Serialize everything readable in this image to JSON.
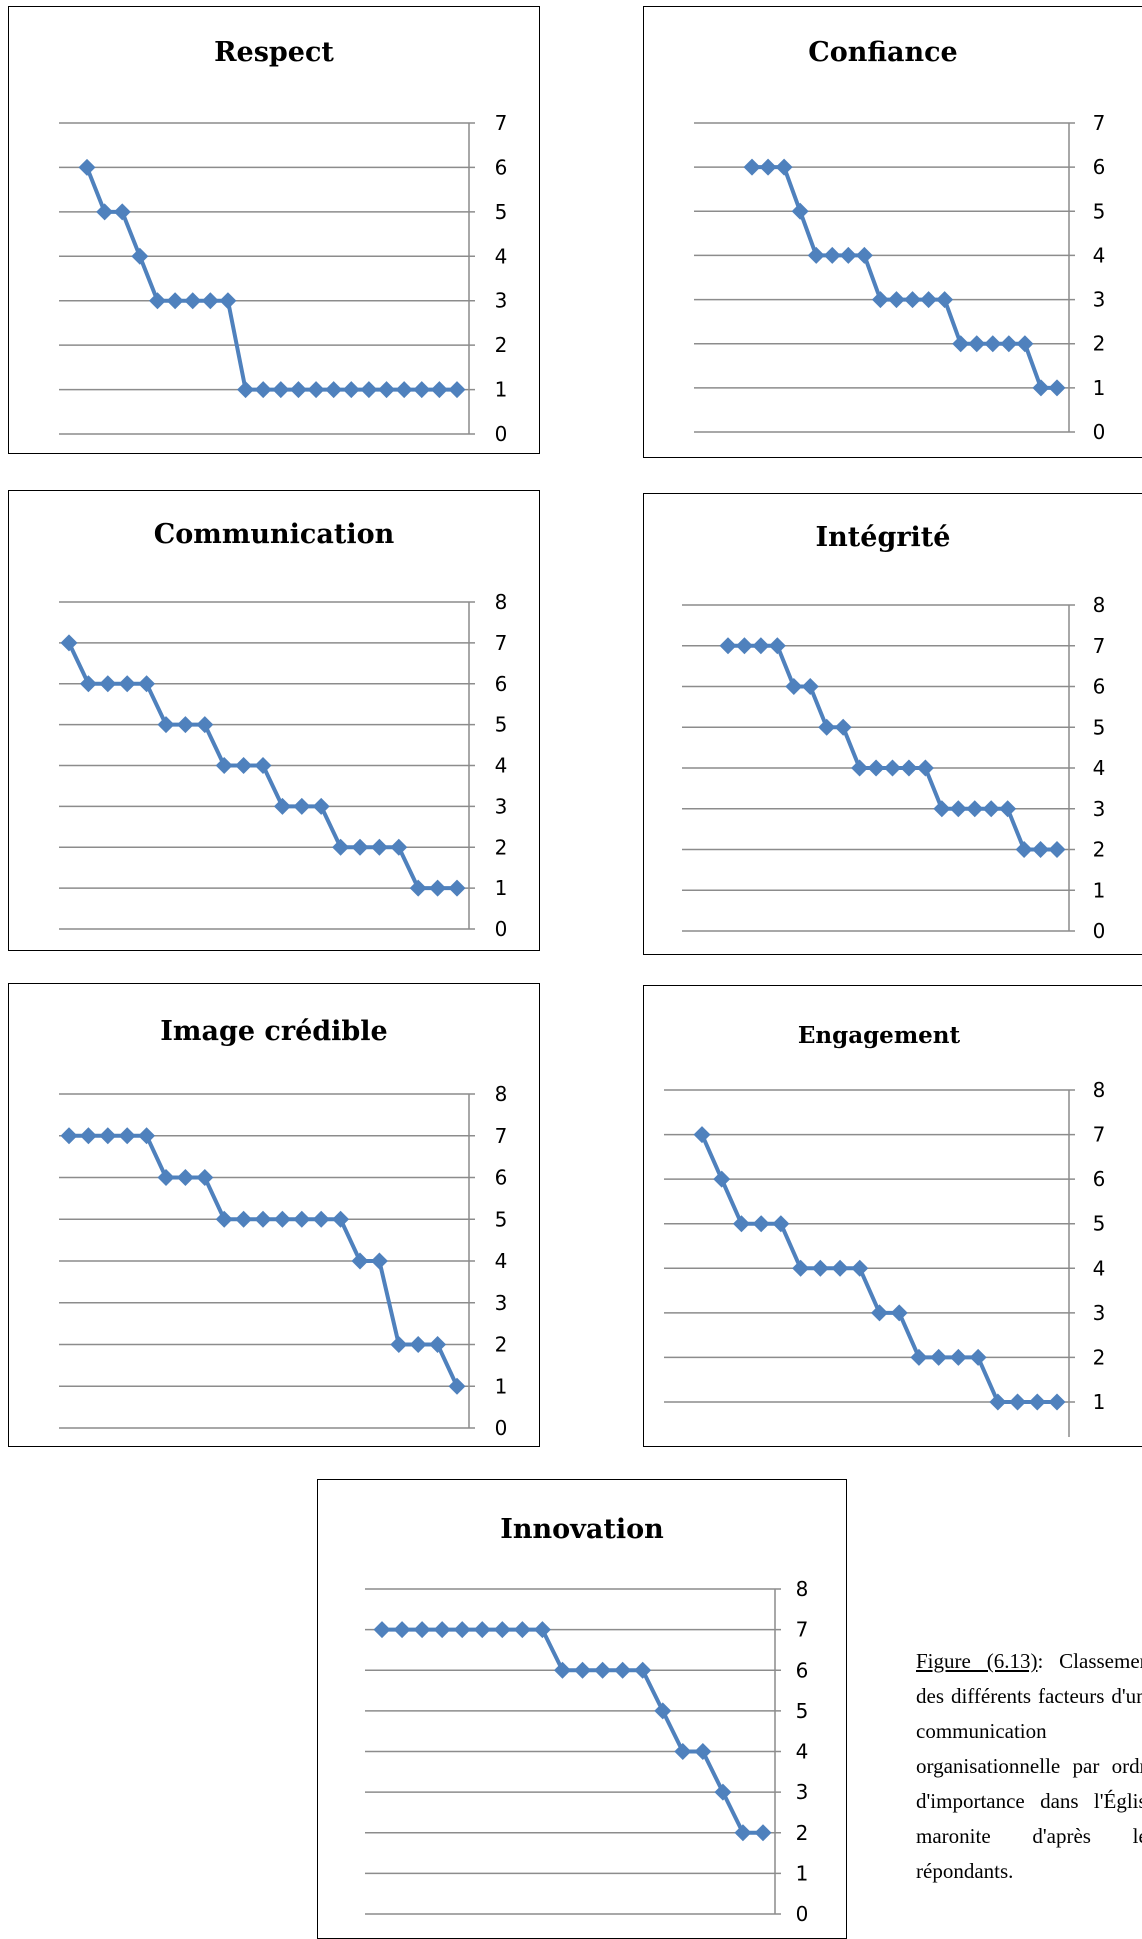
{
  "chart_data": [
    {
      "type": "line",
      "title": "Respect",
      "ylim": [
        0,
        7
      ],
      "yticks": [
        "0",
        "1",
        "2",
        "3",
        "4",
        "5",
        "6",
        "7"
      ],
      "grid": true,
      "legend": "none",
      "y_axis_side": "right",
      "line_color": "#4f81bd",
      "values": [
        6,
        5,
        5,
        4,
        3,
        3,
        3,
        3,
        3,
        1,
        1,
        1,
        1,
        1,
        1,
        1,
        1,
        1,
        1,
        1,
        1,
        1
      ]
    },
    {
      "type": "line",
      "title": "Confiance",
      "ylim": [
        0,
        7
      ],
      "yticks": [
        "0",
        "1",
        "2",
        "3",
        "4",
        "5",
        "6",
        "7"
      ],
      "grid": true,
      "legend": "none",
      "y_axis_side": "right",
      "line_color": "#4f81bd",
      "values": [
        6,
        6,
        6,
        5,
        4,
        4,
        4,
        4,
        3,
        3,
        3,
        3,
        3,
        2,
        2,
        2,
        2,
        2,
        1,
        1
      ]
    },
    {
      "type": "line",
      "title": "Communication",
      "ylim": [
        0,
        8
      ],
      "yticks": [
        "0",
        "1",
        "2",
        "3",
        "4",
        "5",
        "6",
        "7",
        "8"
      ],
      "grid": true,
      "legend": "none",
      "y_axis_side": "right",
      "line_color": "#4f81bd",
      "values": [
        7,
        6,
        6,
        6,
        6,
        5,
        5,
        5,
        4,
        4,
        4,
        3,
        3,
        3,
        2,
        2,
        2,
        2,
        1,
        1,
        1
      ]
    },
    {
      "type": "line",
      "title": "Intégrité",
      "ylim": [
        0,
        8
      ],
      "yticks": [
        "0",
        "1",
        "2",
        "3",
        "4",
        "5",
        "6",
        "7",
        "8"
      ],
      "grid": true,
      "legend": "none",
      "y_axis_side": "right",
      "line_color": "#4f81bd",
      "values": [
        7,
        7,
        7,
        7,
        6,
        6,
        5,
        5,
        4,
        4,
        4,
        4,
        4,
        3,
        3,
        3,
        3,
        3,
        2,
        2,
        2
      ]
    },
    {
      "type": "line",
      "title": "Image crédible",
      "ylim": [
        0,
        8
      ],
      "yticks": [
        "0",
        "1",
        "2",
        "3",
        "4",
        "5",
        "6",
        "7",
        "8"
      ],
      "grid": true,
      "legend": "none",
      "y_axis_side": "right",
      "line_color": "#4f81bd",
      "values": [
        7,
        7,
        7,
        7,
        7,
        6,
        6,
        6,
        5,
        5,
        5,
        5,
        5,
        5,
        5,
        4,
        4,
        2,
        2,
        2,
        1
      ]
    },
    {
      "type": "line",
      "title": "Engagement",
      "ylim": [
        1,
        8
      ],
      "yticks": [
        "1",
        "2",
        "3",
        "4",
        "5",
        "6",
        "7",
        "8"
      ],
      "grid": true,
      "legend": "none",
      "y_axis_side": "right",
      "line_color": "#4f81bd",
      "values": [
        7,
        6,
        5,
        5,
        5,
        4,
        4,
        4,
        4,
        3,
        3,
        2,
        2,
        2,
        2,
        1,
        1,
        1,
        1
      ]
    },
    {
      "type": "line",
      "title": "Innovation",
      "ylim": [
        0,
        8
      ],
      "yticks": [
        "0",
        "1",
        "2",
        "3",
        "4",
        "5",
        "6",
        "7",
        "8"
      ],
      "grid": true,
      "legend": "none",
      "y_axis_side": "right",
      "line_color": "#4f81bd",
      "values": [
        7,
        7,
        7,
        7,
        7,
        7,
        7,
        7,
        7,
        6,
        6,
        6,
        6,
        6,
        5,
        4,
        4,
        3,
        2,
        2
      ]
    }
  ],
  "caption": {
    "figure_ref": "Figure (6.13)",
    "text": ": Classement des différents facteurs d'une communication organisationnelle par ordre d'importance dans l'Église maronite d'après les répondants."
  }
}
